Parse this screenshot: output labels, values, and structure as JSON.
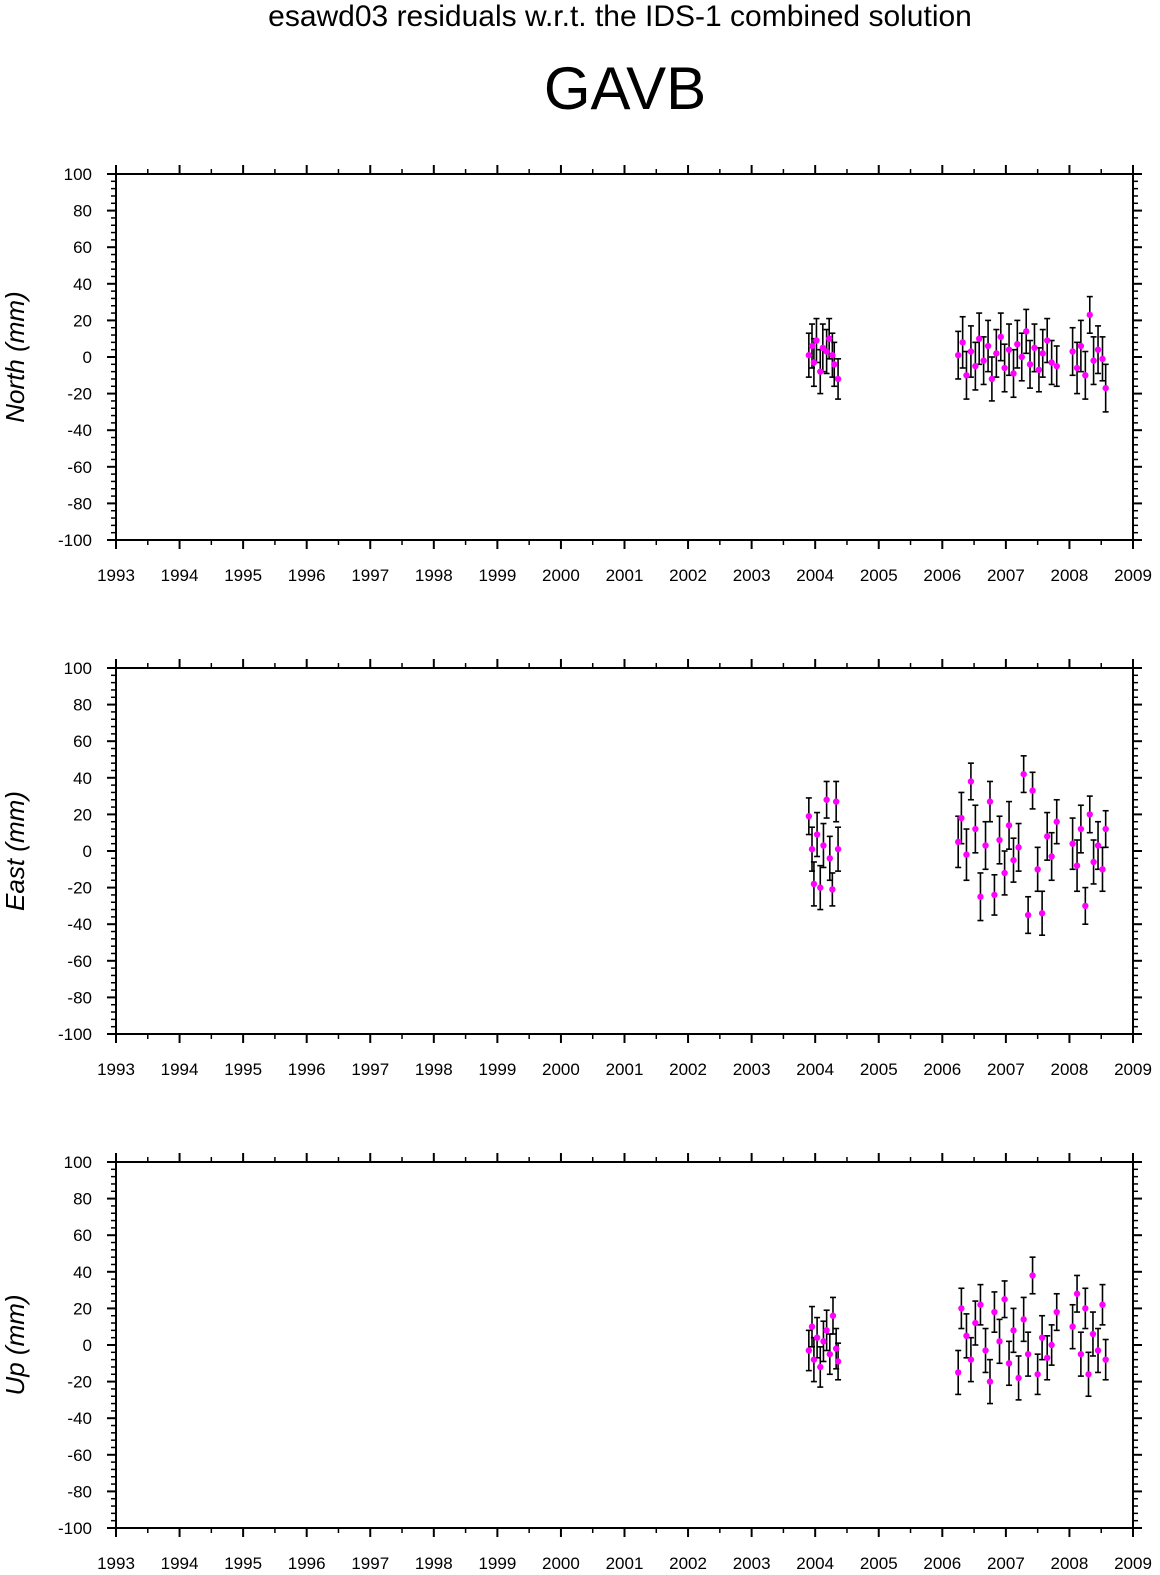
{
  "header": {
    "super_title": "esawd03 residuals w.r.t. the IDS-1 combined solution",
    "station": "GAVB"
  },
  "colors": {
    "point": "#ff00ff",
    "error_bar": "#000000",
    "axis": "#000000"
  },
  "chart_data": [
    {
      "type": "scatter",
      "title": "",
      "xlabel": "",
      "ylabel": "North (mm)",
      "xlim": [
        1993,
        2009
      ],
      "ylim": [
        -100,
        100
      ],
      "x_ticks": [
        1993,
        1994,
        1995,
        1996,
        1997,
        1998,
        1999,
        2000,
        2001,
        2002,
        2003,
        2004,
        2005,
        2006,
        2007,
        2008,
        2009
      ],
      "y_ticks": [
        100,
        80,
        60,
        40,
        20,
        0,
        -20,
        -40,
        -60,
        -80,
        -100
      ],
      "grid": false,
      "series": [
        {
          "marker": "circle",
          "error_bars": true,
          "points": [
            {
              "x": 2003.9,
              "y": 1,
              "err": 12
            },
            {
              "x": 2003.95,
              "y": 6,
              "err": 12
            },
            {
              "x": 2003.98,
              "y": -3,
              "err": 13
            },
            {
              "x": 2004.02,
              "y": 9,
              "err": 12
            },
            {
              "x": 2004.08,
              "y": -8,
              "err": 12
            },
            {
              "x": 2004.12,
              "y": 5,
              "err": 13
            },
            {
              "x": 2004.18,
              "y": 3,
              "err": 12
            },
            {
              "x": 2004.22,
              "y": 10,
              "err": 11
            },
            {
              "x": 2004.27,
              "y": 1,
              "err": 12
            },
            {
              "x": 2004.3,
              "y": -4,
              "err": 12
            },
            {
              "x": 2004.36,
              "y": -12,
              "err": 11
            },
            {
              "x": 2006.25,
              "y": 1,
              "err": 13
            },
            {
              "x": 2006.32,
              "y": 8,
              "err": 14
            },
            {
              "x": 2006.38,
              "y": -10,
              "err": 13
            },
            {
              "x": 2006.45,
              "y": 3,
              "err": 14
            },
            {
              "x": 2006.52,
              "y": -5,
              "err": 13
            },
            {
              "x": 2006.58,
              "y": 10,
              "err": 14
            },
            {
              "x": 2006.65,
              "y": -2,
              "err": 13
            },
            {
              "x": 2006.72,
              "y": 6,
              "err": 14
            },
            {
              "x": 2006.78,
              "y": -12,
              "err": 12
            },
            {
              "x": 2006.85,
              "y": 2,
              "err": 13
            },
            {
              "x": 2006.92,
              "y": 11,
              "err": 13
            },
            {
              "x": 2006.98,
              "y": -6,
              "err": 13
            },
            {
              "x": 2007.05,
              "y": 4,
              "err": 14
            },
            {
              "x": 2007.12,
              "y": -9,
              "err": 13
            },
            {
              "x": 2007.18,
              "y": 7,
              "err": 13
            },
            {
              "x": 2007.25,
              "y": 0,
              "err": 13
            },
            {
              "x": 2007.32,
              "y": 14,
              "err": 12
            },
            {
              "x": 2007.38,
              "y": -4,
              "err": 13
            },
            {
              "x": 2007.45,
              "y": 5,
              "err": 13
            },
            {
              "x": 2007.52,
              "y": -7,
              "err": 12
            },
            {
              "x": 2007.58,
              "y": 2,
              "err": 13
            },
            {
              "x": 2007.65,
              "y": 9,
              "err": 12
            },
            {
              "x": 2007.72,
              "y": -3,
              "err": 12
            },
            {
              "x": 2007.8,
              "y": -5,
              "err": 11
            },
            {
              "x": 2008.05,
              "y": 3,
              "err": 13
            },
            {
              "x": 2008.12,
              "y": -6,
              "err": 14
            },
            {
              "x": 2008.18,
              "y": 6,
              "err": 14
            },
            {
              "x": 2008.25,
              "y": -10,
              "err": 13
            },
            {
              "x": 2008.32,
              "y": 23,
              "err": 10
            },
            {
              "x": 2008.38,
              "y": -2,
              "err": 13
            },
            {
              "x": 2008.45,
              "y": 4,
              "err": 13
            },
            {
              "x": 2008.52,
              "y": -1,
              "err": 12
            },
            {
              "x": 2008.57,
              "y": -17,
              "err": 13
            }
          ]
        }
      ]
    },
    {
      "type": "scatter",
      "title": "",
      "xlabel": "",
      "ylabel": "East (mm)",
      "xlim": [
        1993,
        2009
      ],
      "ylim": [
        -100,
        100
      ],
      "x_ticks": [
        1993,
        1994,
        1995,
        1996,
        1997,
        1998,
        1999,
        2000,
        2001,
        2002,
        2003,
        2004,
        2005,
        2006,
        2007,
        2008,
        2009
      ],
      "y_ticks": [
        100,
        80,
        60,
        40,
        20,
        0,
        -20,
        -40,
        -60,
        -80,
        -100
      ],
      "grid": false,
      "series": [
        {
          "marker": "circle",
          "error_bars": true,
          "points": [
            {
              "x": 2003.9,
              "y": 19,
              "err": 10
            },
            {
              "x": 2003.95,
              "y": 1,
              "err": 12
            },
            {
              "x": 2003.98,
              "y": -18,
              "err": 12
            },
            {
              "x": 2004.03,
              "y": 9,
              "err": 12
            },
            {
              "x": 2004.08,
              "y": -20,
              "err": 12
            },
            {
              "x": 2004.13,
              "y": 3,
              "err": 12
            },
            {
              "x": 2004.18,
              "y": 28,
              "err": 10
            },
            {
              "x": 2004.23,
              "y": -4,
              "err": 12
            },
            {
              "x": 2004.27,
              "y": -21,
              "err": 9
            },
            {
              "x": 2004.33,
              "y": 27,
              "err": 11
            },
            {
              "x": 2004.36,
              "y": 1,
              "err": 12
            },
            {
              "x": 2006.25,
              "y": 5,
              "err": 14
            },
            {
              "x": 2006.3,
              "y": 18,
              "err": 14
            },
            {
              "x": 2006.38,
              "y": -2,
              "err": 14
            },
            {
              "x": 2006.45,
              "y": 38,
              "err": 10
            },
            {
              "x": 2006.52,
              "y": 12,
              "err": 13
            },
            {
              "x": 2006.6,
              "y": -25,
              "err": 13
            },
            {
              "x": 2006.68,
              "y": 3,
              "err": 13
            },
            {
              "x": 2006.75,
              "y": 27,
              "err": 11
            },
            {
              "x": 2006.82,
              "y": -24,
              "err": 11
            },
            {
              "x": 2006.9,
              "y": 6,
              "err": 13
            },
            {
              "x": 2006.98,
              "y": -12,
              "err": 12
            },
            {
              "x": 2007.05,
              "y": 14,
              "err": 13
            },
            {
              "x": 2007.12,
              "y": -5,
              "err": 12
            },
            {
              "x": 2007.2,
              "y": 2,
              "err": 13
            },
            {
              "x": 2007.28,
              "y": 42,
              "err": 10
            },
            {
              "x": 2007.35,
              "y": -35,
              "err": 10
            },
            {
              "x": 2007.42,
              "y": 33,
              "err": 10
            },
            {
              "x": 2007.5,
              "y": -10,
              "err": 12
            },
            {
              "x": 2007.57,
              "y": -34,
              "err": 12
            },
            {
              "x": 2007.65,
              "y": 8,
              "err": 13
            },
            {
              "x": 2007.72,
              "y": -3,
              "err": 13
            },
            {
              "x": 2007.8,
              "y": 16,
              "err": 12
            },
            {
              "x": 2008.05,
              "y": 4,
              "err": 14
            },
            {
              "x": 2008.12,
              "y": -8,
              "err": 14
            },
            {
              "x": 2008.18,
              "y": 12,
              "err": 13
            },
            {
              "x": 2008.25,
              "y": -30,
              "err": 10
            },
            {
              "x": 2008.32,
              "y": 20,
              "err": 10
            },
            {
              "x": 2008.38,
              "y": -6,
              "err": 12
            },
            {
              "x": 2008.45,
              "y": 3,
              "err": 13
            },
            {
              "x": 2008.52,
              "y": -10,
              "err": 12
            },
            {
              "x": 2008.57,
              "y": 12,
              "err": 10
            }
          ]
        }
      ]
    },
    {
      "type": "scatter",
      "title": "",
      "xlabel": "",
      "ylabel": "Up (mm)",
      "xlim": [
        1993,
        2009
      ],
      "ylim": [
        -100,
        100
      ],
      "x_ticks": [
        1993,
        1994,
        1995,
        1996,
        1997,
        1998,
        1999,
        2000,
        2001,
        2002,
        2003,
        2004,
        2005,
        2006,
        2007,
        2008,
        2009
      ],
      "y_ticks": [
        100,
        80,
        60,
        40,
        20,
        0,
        -20,
        -40,
        -60,
        -80,
        -100
      ],
      "grid": false,
      "series": [
        {
          "marker": "circle",
          "error_bars": true,
          "points": [
            {
              "x": 2003.9,
              "y": -3,
              "err": 11
            },
            {
              "x": 2003.95,
              "y": 10,
              "err": 11
            },
            {
              "x": 2003.98,
              "y": -8,
              "err": 12
            },
            {
              "x": 2004.03,
              "y": 4,
              "err": 11
            },
            {
              "x": 2004.08,
              "y": -12,
              "err": 11
            },
            {
              "x": 2004.13,
              "y": 2,
              "err": 11
            },
            {
              "x": 2004.18,
              "y": 8,
              "err": 11
            },
            {
              "x": 2004.23,
              "y": -5,
              "err": 11
            },
            {
              "x": 2004.28,
              "y": 16,
              "err": 10
            },
            {
              "x": 2004.33,
              "y": -2,
              "err": 11
            },
            {
              "x": 2004.36,
              "y": -9,
              "err": 10
            },
            {
              "x": 2006.25,
              "y": -15,
              "err": 12
            },
            {
              "x": 2006.3,
              "y": 20,
              "err": 11
            },
            {
              "x": 2006.38,
              "y": 5,
              "err": 12
            },
            {
              "x": 2006.45,
              "y": -8,
              "err": 12
            },
            {
              "x": 2006.52,
              "y": 12,
              "err": 12
            },
            {
              "x": 2006.6,
              "y": 22,
              "err": 11
            },
            {
              "x": 2006.68,
              "y": -3,
              "err": 12
            },
            {
              "x": 2006.75,
              "y": -20,
              "err": 12
            },
            {
              "x": 2006.82,
              "y": 18,
              "err": 11
            },
            {
              "x": 2006.9,
              "y": 2,
              "err": 12
            },
            {
              "x": 2006.98,
              "y": 25,
              "err": 10
            },
            {
              "x": 2007.05,
              "y": -10,
              "err": 12
            },
            {
              "x": 2007.12,
              "y": 8,
              "err": 12
            },
            {
              "x": 2007.2,
              "y": -18,
              "err": 12
            },
            {
              "x": 2007.28,
              "y": 14,
              "err": 12
            },
            {
              "x": 2007.35,
              "y": -5,
              "err": 12
            },
            {
              "x": 2007.42,
              "y": 38,
              "err": 10
            },
            {
              "x": 2007.5,
              "y": -16,
              "err": 11
            },
            {
              "x": 2007.57,
              "y": 4,
              "err": 12
            },
            {
              "x": 2007.65,
              "y": -7,
              "err": 12
            },
            {
              "x": 2007.72,
              "y": 0,
              "err": 11
            },
            {
              "x": 2007.8,
              "y": 18,
              "err": 10
            },
            {
              "x": 2008.05,
              "y": 10,
              "err": 12
            },
            {
              "x": 2008.12,
              "y": 28,
              "err": 10
            },
            {
              "x": 2008.18,
              "y": -5,
              "err": 12
            },
            {
              "x": 2008.25,
              "y": 20,
              "err": 11
            },
            {
              "x": 2008.3,
              "y": -16,
              "err": 12
            },
            {
              "x": 2008.37,
              "y": 6,
              "err": 12
            },
            {
              "x": 2008.45,
              "y": -3,
              "err": 12
            },
            {
              "x": 2008.52,
              "y": 22,
              "err": 11
            },
            {
              "x": 2008.57,
              "y": -8,
              "err": 11
            }
          ]
        }
      ]
    }
  ]
}
